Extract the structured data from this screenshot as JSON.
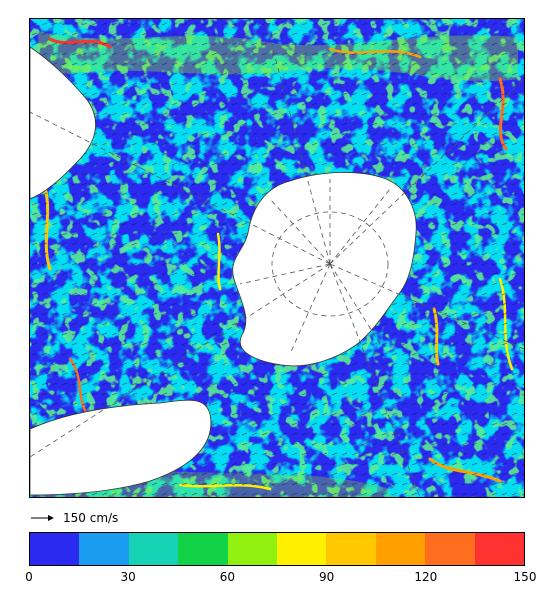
{
  "map": {
    "projection": "south-polar stereographic",
    "field": "ocean surface current speed with velocity vectors",
    "central_landmass": "Antarctica"
  },
  "reference_vector": {
    "label": "150 cm/s",
    "value": 150,
    "unit": "cm/s"
  },
  "colorbar": {
    "min": 0,
    "max": 150,
    "step": 15,
    "colors": [
      "#2a2af0",
      "#1a9cf0",
      "#16d2b4",
      "#12d248",
      "#90f010",
      "#fff000",
      "#ffc800",
      "#ffa000",
      "#ff6e1e",
      "#ff3232"
    ],
    "ticks": [
      "0",
      "30",
      "60",
      "90",
      "120",
      "150"
    ],
    "tick_values": [
      0,
      30,
      60,
      90,
      120,
      150
    ]
  }
}
